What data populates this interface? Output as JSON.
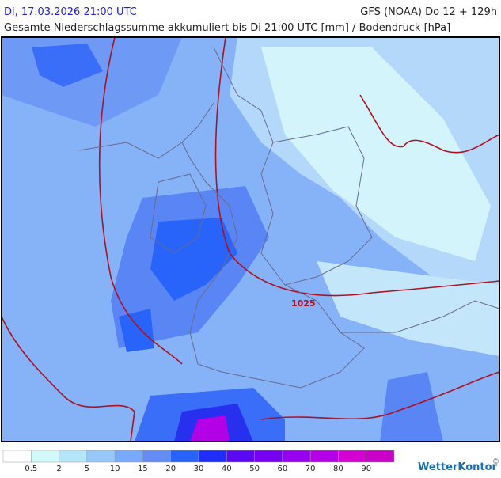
{
  "header": {
    "left": "Di, 17.03.2026 21:00 UTC",
    "right": "GFS (NOAA) Do 12 + 129h",
    "subtitle": "Gesamte Niederschlagssumme akkumuliert bis Di 21:00 UTC [mm] / Bodendruck [hPa]"
  },
  "map": {
    "isobar_labels": [
      "1025"
    ]
  },
  "legend": {
    "labels": [
      "0.5",
      "2",
      "5",
      "10",
      "15",
      "20",
      "30",
      "40",
      "50",
      "60",
      "70",
      "80",
      "90"
    ],
    "colors": [
      "#ffffff",
      "#d2fafa",
      "#b4e6fa",
      "#96c8fa",
      "#78aafa",
      "#648cf5",
      "#2864fa",
      "#1e2dfa",
      "#5a0af0",
      "#7800f0",
      "#9600f0",
      "#b400e6",
      "#d200d2",
      "#c800c8"
    ]
  },
  "footer": {
    "brand": "WetterKontor",
    "copyright": "©"
  }
}
